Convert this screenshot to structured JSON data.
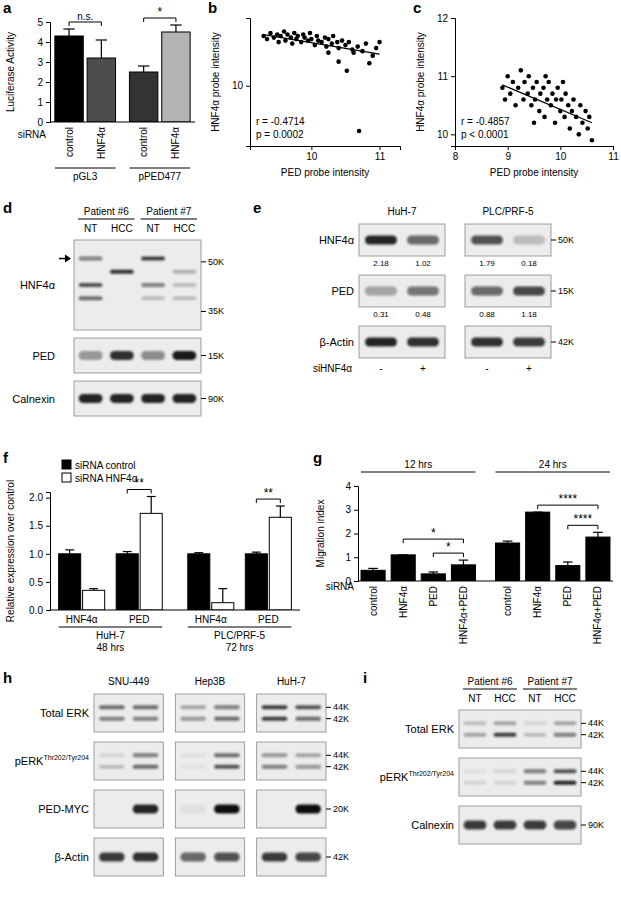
{
  "chart_data": [
    {
      "panel": "a",
      "type": "bar",
      "y_label": "Luciferase Activity",
      "ylim": [
        0,
        5
      ],
      "yticks": [
        0,
        1,
        2,
        3,
        4,
        5
      ],
      "x_label": "siRNA",
      "categories": [
        "control",
        "HNF4α",
        "control",
        "HNF4α"
      ],
      "values": [
        4.3,
        3.2,
        2.5,
        4.5
      ],
      "errors": [
        0.35,
        0.9,
        0.3,
        0.35
      ],
      "colors": [
        "#000000",
        "#4d4d4d",
        "#333333",
        "#b3b3b3"
      ],
      "groups": [
        {
          "label": "pGL3",
          "size": 2
        },
        {
          "label": "pPED477",
          "size": 2
        }
      ],
      "comparisons": [
        {
          "bars": [
            0,
            1
          ],
          "text": "n.s."
        },
        {
          "bars": [
            2,
            3
          ],
          "text": "*"
        }
      ]
    },
    {
      "panel": "b",
      "type": "scatter",
      "x_label": "PED probe intensity",
      "y_label": "HNF4α probe intensity",
      "xlim": [
        9.1,
        11.3
      ],
      "xticks": [
        10,
        11
      ],
      "ylim": [
        6,
        14.5
      ],
      "yticks": [
        10
      ],
      "color": "#000000",
      "marker": "circle",
      "x": [
        9.3,
        9.35,
        9.4,
        9.45,
        9.5,
        9.52,
        9.55,
        9.6,
        9.62,
        9.65,
        9.7,
        9.72,
        9.75,
        9.78,
        9.8,
        9.85,
        9.88,
        9.9,
        9.95,
        9.98,
        10.0,
        10.05,
        10.08,
        10.1,
        10.15,
        10.2,
        10.22,
        10.25,
        10.3,
        10.32,
        10.38,
        10.4,
        10.45,
        10.5,
        10.52,
        10.55,
        10.6,
        10.62,
        10.68,
        10.7,
        10.75,
        10.8,
        10.85,
        10.9,
        10.95,
        11.0,
        10.4,
        10.25
      ],
      "y": [
        13.3,
        13.1,
        13.5,
        13.2,
        13.4,
        12.9,
        13.3,
        13.6,
        13.0,
        13.4,
        13.2,
        12.8,
        13.5,
        13.1,
        13.3,
        12.9,
        13.4,
        13.2,
        13.0,
        13.5,
        13.1,
        12.7,
        13.3,
        13.0,
        12.9,
        13.2,
        12.6,
        13.1,
        12.8,
        13.3,
        12.9,
        12.5,
        13.0,
        12.7,
        11.0,
        12.9,
        12.4,
        12.2,
        12.6,
        7.0,
        12.3,
        12.8,
        11.5,
        12.0,
        12.5,
        12.9,
        11.6,
        12.2
      ],
      "trend": {
        "x": [
          9.3,
          11.0
        ],
        "y": [
          13.4,
          12.1
        ]
      },
      "annotations": [
        "r = -0.4714",
        "p = 0.0002"
      ]
    },
    {
      "panel": "c",
      "type": "scatter",
      "x_label": "PED probe intensity",
      "y_label": "HNF4α probe intensity",
      "xlim": [
        8,
        11
      ],
      "xticks": [
        8,
        9,
        10,
        11
      ],
      "ylim": [
        9.8,
        12
      ],
      "yticks": [
        10,
        11,
        12
      ],
      "color": "#000000",
      "marker": "circle",
      "x": [
        8.9,
        8.95,
        9.0,
        9.05,
        9.1,
        9.15,
        9.2,
        9.25,
        9.3,
        9.32,
        9.38,
        9.4,
        9.45,
        9.48,
        9.52,
        9.55,
        9.6,
        9.62,
        9.68,
        9.7,
        9.75,
        9.78,
        9.82,
        9.85,
        9.9,
        9.92,
        9.95,
        10.0,
        10.02,
        10.08,
        10.1,
        10.15,
        10.18,
        10.22,
        10.25,
        10.3,
        10.35,
        10.38,
        10.42,
        10.48,
        10.52,
        10.55,
        10.6,
        9.5,
        9.72,
        10.05
      ],
      "y": [
        10.8,
        10.6,
        11.0,
        10.7,
        10.9,
        10.5,
        10.8,
        11.1,
        10.6,
        10.9,
        10.7,
        11.0,
        10.5,
        10.8,
        10.6,
        10.9,
        10.4,
        10.7,
        10.8,
        10.3,
        10.6,
        10.9,
        10.5,
        10.7,
        10.2,
        10.6,
        10.8,
        10.4,
        10.6,
        10.3,
        10.7,
        10.5,
        10.1,
        10.4,
        10.6,
        10.3,
        10.0,
        10.5,
        10.2,
        10.4,
        10.1,
        10.3,
        9.9,
        10.2,
        11.0,
        10.9
      ],
      "trend": {
        "x": [
          8.9,
          10.6
        ],
        "y": [
          10.85,
          10.2
        ]
      },
      "annotations": [
        "r = -0.4857",
        "p < 0.0001"
      ]
    },
    {
      "panel": "d",
      "type": "blot",
      "groups": [
        {
          "label": "Patient #6",
          "size": 2
        },
        {
          "label": "Patient #7",
          "size": 2
        }
      ],
      "lanes": [
        "NT",
        "HCC",
        "NT",
        "HCC"
      ],
      "rows": [
        {
          "label": "HNF4α",
          "ylim": [
            30,
            56
          ],
          "yticks": [
            {
              "value": 50,
              "label": "50K"
            },
            {
              "value": 35,
              "label": "35K"
            }
          ],
          "bands": [
            {
              "kda": 51,
              "values": [
                0.5,
                0,
                0.8,
                0
              ]
            },
            {
              "kda": 47,
              "values": [
                0,
                0.85,
                0,
                0.25
              ]
            },
            {
              "kda": 43,
              "values": [
                0.7,
                0,
                0.5,
                0.2
              ]
            },
            {
              "kda": 39,
              "values": [
                0.6,
                0,
                0.2,
                0.2
              ]
            }
          ]
        },
        {
          "label": "PED",
          "ylim": [
            12,
            18
          ],
          "yticks": [
            {
              "value": 15,
              "label": "15K"
            }
          ],
          "bands": [
            {
              "kda": 15,
              "values": [
                0.4,
                0.85,
                0.45,
                0.95
              ]
            }
          ]
        },
        {
          "label": "Calnexin",
          "ylim": [
            85,
            95
          ],
          "yticks": [
            {
              "value": 90,
              "label": "90K"
            }
          ],
          "bands": [
            {
              "kda": 90,
              "values": [
                0.9,
                0.9,
                0.9,
                0.9
              ]
            }
          ]
        }
      ]
    },
    {
      "panel": "e",
      "type": "blot",
      "groups": [
        {
          "label": "HuH-7",
          "size": 2
        },
        {
          "label": "PLC/PRF-5",
          "size": 2
        }
      ],
      "lanes": [
        "-",
        "+",
        "-",
        "+"
      ],
      "lane_title": "siHNF4α",
      "rows": [
        {
          "label": "HNF4α",
          "ylim": [
            45,
            55
          ],
          "yticks": [
            {
              "value": 50,
              "label": "50K"
            }
          ],
          "bands": [
            {
              "kda": 50,
              "values": [
                0.9,
                0.6,
                0.7,
                0.2
              ]
            }
          ],
          "quantification": [
            2.18,
            1.02,
            1.79,
            0.18
          ]
        },
        {
          "label": "PED",
          "ylim": [
            12,
            18
          ],
          "yticks": [
            {
              "value": 15,
              "label": "15K"
            }
          ],
          "bands": [
            {
              "kda": 15,
              "values": [
                0.35,
                0.55,
                0.6,
                0.75
              ]
            }
          ],
          "quantification": [
            0.31,
            0.48,
            0.88,
            1.18
          ]
        },
        {
          "label": "β-Actin",
          "ylim": [
            38,
            46
          ],
          "yticks": [
            {
              "value": 42,
              "label": "42K"
            }
          ],
          "bands": [
            {
              "kda": 42,
              "values": [
                0.9,
                0.85,
                0.85,
                0.8
              ]
            }
          ]
        }
      ]
    },
    {
      "panel": "f",
      "type": "bar",
      "y_label": "Relative expression over control",
      "ylim": [
        0,
        2.1
      ],
      "yticks": [
        {
          "value": 0,
          "label": "0.0"
        },
        {
          "value": 0.5,
          "label": "0.5"
        },
        {
          "value": 1,
          "label": "1.0"
        },
        {
          "value": 1.5,
          "label": "1.5"
        },
        {
          "value": 2,
          "label": "2.0"
        }
      ],
      "categories": [
        "HNF4α",
        "PED",
        "HNF4α",
        "PED"
      ],
      "series": [
        {
          "name": "siRNA control",
          "color": "#000000",
          "values": [
            1.0,
            1.0,
            1.0,
            1.0
          ],
          "errors": [
            0.07,
            0.04,
            0.02,
            0.03
          ]
        },
        {
          "name": "siRNA HNF4α",
          "color": "#ffffff",
          "values": [
            0.35,
            1.72,
            0.13,
            1.65
          ],
          "errors": [
            0.03,
            0.3,
            0.25,
            0.2
          ]
        }
      ],
      "legend": "upper left",
      "groups": [
        {
          "label": "HuH-7",
          "sublabel": "48 hrs",
          "size": 2
        },
        {
          "label": "PLC/PRF-5",
          "sublabel": "72 hrs",
          "size": 2
        }
      ],
      "comparisons": [
        {
          "category": 1,
          "text": "**"
        },
        {
          "category": 3,
          "text": "**"
        }
      ]
    },
    {
      "panel": "g",
      "type": "bar",
      "y_label": "Migration index",
      "ylim": [
        0,
        4
      ],
      "yticks": [
        0,
        1,
        2,
        3,
        4
      ],
      "x_label": "siRNA",
      "categories": [
        "control",
        "HNF4α",
        "PED",
        "HNF4α+PED",
        "control",
        "HNF4α",
        "PED",
        "HNF4α+PED"
      ],
      "values": [
        0.45,
        1.1,
        0.3,
        0.68,
        1.6,
        2.9,
        0.65,
        1.85
      ],
      "errors": [
        0.08,
        0,
        0.08,
        0.2,
        0.08,
        0,
        0.15,
        0.2
      ],
      "color": "#000000",
      "groups": [
        {
          "label": "12 hrs",
          "size": 4
        },
        {
          "label": "24 hrs",
          "size": 4
        }
      ],
      "comparisons": [
        {
          "bars": [
            2,
            3
          ],
          "text": "*"
        },
        {
          "bars": [
            1,
            3
          ],
          "text": "*"
        },
        {
          "bars": [
            6,
            7
          ],
          "text": "****"
        },
        {
          "bars": [
            5,
            7
          ],
          "text": "****"
        }
      ]
    },
    {
      "panel": "h",
      "type": "blot",
      "groups": [
        {
          "label": "SNU-449",
          "size": 2
        },
        {
          "label": "Hep3B",
          "size": 2
        },
        {
          "label": "HuH-7",
          "size": 2
        }
      ],
      "rows": [
        {
          "label": "Total ERK",
          "ylim": [
            40,
            46
          ],
          "yticks": [
            {
              "value": 44,
              "label": "44K"
            },
            {
              "value": 42,
              "label": "42K"
            }
          ],
          "bands": [
            {
              "kda": 44,
              "values": [
                0.6,
                0.6,
                0.3,
                0.5,
                0.8,
                0.7
              ]
            },
            {
              "kda": 42,
              "values": [
                0.5,
                0.5,
                0.4,
                0.6,
                0.8,
                0.6
              ]
            }
          ]
        },
        {
          "label": "pERK",
          "label_sup": "Thr202/Tyr204",
          "ylim": [
            40,
            46
          ],
          "yticks": [
            {
              "value": 44,
              "label": "44K"
            },
            {
              "value": 42,
              "label": "42K"
            }
          ],
          "bands": [
            {
              "kda": 44,
              "values": [
                0.1,
                0.5,
                0.05,
                0.6,
                0.4,
                0.3
              ]
            },
            {
              "kda": 42,
              "values": [
                0.2,
                0.6,
                0.05,
                0.7,
                0.5,
                0.4
              ]
            }
          ]
        },
        {
          "label": "PED-MYC",
          "ylim": [
            17,
            23
          ],
          "yticks": [
            {
              "value": 20,
              "label": "20K"
            }
          ],
          "bands": [
            {
              "kda": 20,
              "values": [
                0,
                0.9,
                0.05,
                1,
                0,
                1
              ]
            }
          ]
        },
        {
          "label": "β-Actin",
          "ylim": [
            38,
            46
          ],
          "yticks": [
            {
              "value": 42,
              "label": "42K"
            }
          ],
          "bands": [
            {
              "kda": 42,
              "values": [
                0.8,
                0.85,
                0.6,
                0.7,
                0.8,
                0.75
              ]
            }
          ]
        }
      ]
    },
    {
      "panel": "i",
      "type": "blot",
      "groups": [
        {
          "label": "Patient #6",
          "size": 2
        },
        {
          "label": "Patient #7",
          "size": 2
        }
      ],
      "lanes": [
        "NT",
        "HCC",
        "NT",
        "HCC"
      ],
      "rows": [
        {
          "label": "Total ERK",
          "ylim": [
            40,
            46
          ],
          "yticks": [
            {
              "value": 44,
              "label": "44K"
            },
            {
              "value": 42,
              "label": "42K"
            }
          ],
          "bands": [
            {
              "kda": 44,
              "values": [
                0.2,
                0.3,
                0.1,
                0.3
              ]
            },
            {
              "kda": 42,
              "values": [
                0.3,
                0.8,
                0.2,
                0.5
              ]
            }
          ]
        },
        {
          "label": "pERK",
          "label_sup": "Thr202/Tyr204",
          "ylim": [
            40,
            46
          ],
          "yticks": [
            {
              "value": 44,
              "label": "44K"
            },
            {
              "value": 42,
              "label": "42K"
            }
          ],
          "bands": [
            {
              "kda": 44,
              "values": [
                0.05,
                0.1,
                0.5,
                0.7
              ]
            },
            {
              "kda": 42,
              "values": [
                0.1,
                0.1,
                0.5,
                0.9
              ]
            }
          ]
        },
        {
          "label": "Calnexin",
          "ylim": [
            85,
            95
          ],
          "yticks": [
            {
              "value": 90,
              "label": "90K"
            }
          ],
          "bands": [
            {
              "kda": 90,
              "values": [
                0.8,
                0.8,
                0.8,
                0.75
              ]
            }
          ]
        }
      ]
    }
  ]
}
